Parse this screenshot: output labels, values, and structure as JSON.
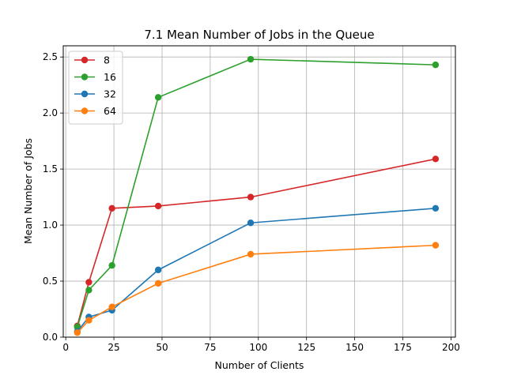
{
  "chart_data": {
    "type": "line",
    "title": "7.1 Mean Number of Jobs in the Queue",
    "xlabel": "Number of Clients",
    "ylabel": "Mean Number of Jobs",
    "xlim": [
      -1.3,
      202.3
    ],
    "ylim": [
      0,
      2.6
    ],
    "xticks": [
      0,
      25,
      50,
      75,
      100,
      125,
      150,
      175,
      200
    ],
    "yticks": [
      0.0,
      0.5,
      1.0,
      1.5,
      2.0,
      2.5
    ],
    "xtick_labels": [
      "0",
      "25",
      "50",
      "75",
      "100",
      "125",
      "150",
      "175",
      "200"
    ],
    "ytick_labels": [
      "0.0",
      "0.5",
      "1.0",
      "1.5",
      "2.0",
      "2.5"
    ],
    "grid": true,
    "legend_position": "top-left",
    "x": [
      6,
      12,
      24,
      48,
      96,
      192
    ],
    "series": [
      {
        "name": "8",
        "color": "#d62728",
        "values": [
          0.1,
          0.49,
          1.15,
          1.17,
          1.25,
          1.59
        ]
      },
      {
        "name": "16",
        "color": "#2ca02c",
        "values": [
          0.09,
          0.42,
          0.64,
          2.14,
          2.48,
          2.43
        ]
      },
      {
        "name": "32",
        "color": "#1f77b4",
        "values": [
          0.05,
          0.18,
          0.24,
          0.6,
          1.02,
          1.15
        ]
      },
      {
        "name": "64",
        "color": "#ff7f0e",
        "values": [
          0.04,
          0.15,
          0.27,
          0.48,
          0.74,
          0.82
        ]
      }
    ]
  }
}
